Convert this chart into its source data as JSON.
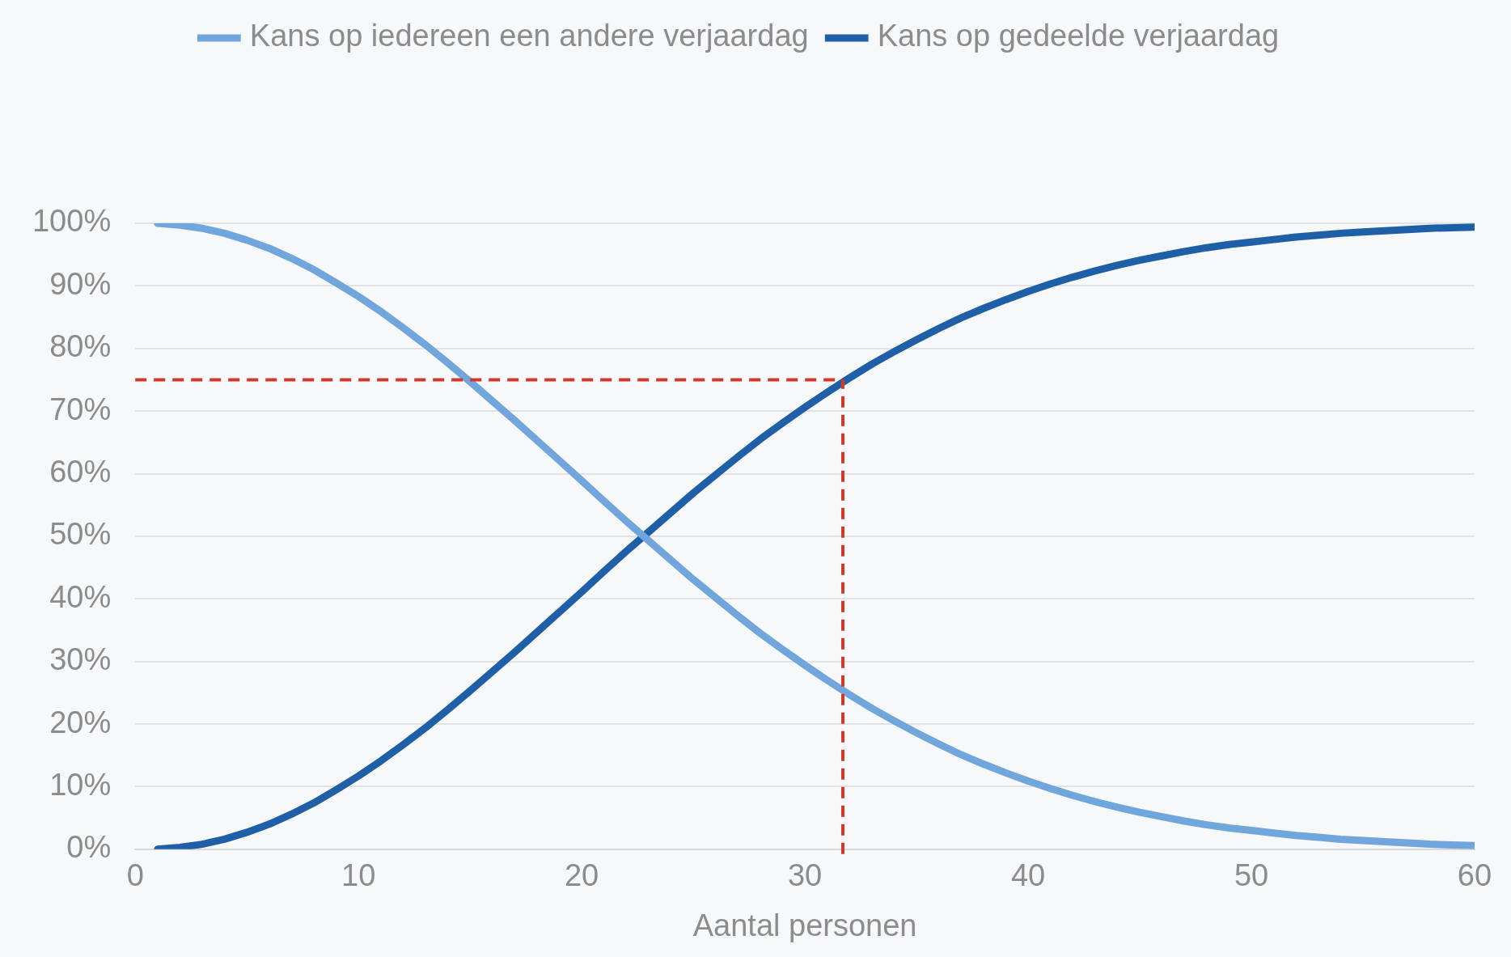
{
  "chart_data": {
    "type": "line",
    "xlabel": "Aantal personen",
    "x": [
      1,
      2,
      3,
      4,
      5,
      6,
      7,
      8,
      9,
      10,
      11,
      12,
      13,
      14,
      15,
      16,
      17,
      18,
      19,
      20,
      21,
      22,
      23,
      24,
      25,
      26,
      27,
      28,
      29,
      30,
      31,
      32,
      33,
      34,
      35,
      36,
      37,
      38,
      39,
      40,
      41,
      42,
      43,
      44,
      45,
      46,
      47,
      48,
      49,
      50,
      51,
      52,
      53,
      54,
      55,
      56,
      57,
      58,
      59,
      60
    ],
    "series": [
      {
        "name": "Kans op iedereen een andere verjaardag",
        "color": "#70a6dc",
        "values": [
          100,
          99.7,
          99.2,
          98.4,
          97.3,
          96,
          94.4,
          92.6,
          90.5,
          88.3,
          85.9,
          83.3,
          80.6,
          77.7,
          74.7,
          71.6,
          68.5,
          65.3,
          62.1,
          58.9,
          55.6,
          52.4,
          49.3,
          46.2,
          43.1,
          40.2,
          37.3,
          34.5,
          31.9,
          29.4,
          27,
          24.7,
          22.5,
          20.5,
          18.6,
          16.8,
          15.1,
          13.6,
          12.2,
          10.9,
          9.7,
          8.6,
          7.6,
          6.7,
          5.9,
          5.2,
          4.5,
          3.9,
          3.4,
          3,
          2.6,
          2.2,
          1.9,
          1.6,
          1.4,
          1.2,
          1,
          0.8,
          0.7,
          0.6
        ]
      },
      {
        "name": "Kans op gedeelde verjaardag",
        "color": "#1f5fa8",
        "values": [
          0,
          0.3,
          0.8,
          1.6,
          2.7,
          4,
          5.6,
          7.4,
          9.5,
          11.7,
          14.1,
          16.7,
          19.4,
          22.3,
          25.3,
          28.4,
          31.5,
          34.7,
          37.9,
          41.1,
          44.4,
          47.6,
          50.7,
          53.8,
          56.9,
          59.8,
          62.7,
          65.5,
          68.1,
          70.6,
          73,
          75.3,
          77.5,
          79.5,
          81.4,
          83.2,
          84.9,
          86.4,
          87.8,
          89.1,
          90.3,
          91.4,
          92.4,
          93.3,
          94.1,
          94.8,
          95.5,
          96.1,
          96.6,
          97,
          97.4,
          97.8,
          98.1,
          98.4,
          98.6,
          98.8,
          99,
          99.2,
          99.3,
          99.4
        ]
      }
    ],
    "xlim": [
      0,
      60
    ],
    "xticks": [
      0,
      10,
      20,
      30,
      40,
      50,
      60
    ],
    "ylim": [
      0,
      100
    ],
    "yticks": [
      {
        "value": 0,
        "label": "0%"
      },
      {
        "value": 10,
        "label": "10%"
      },
      {
        "value": 20,
        "label": "20%"
      },
      {
        "value": 30,
        "label": "30%"
      },
      {
        "value": 40,
        "label": "40%"
      },
      {
        "value": 50,
        "label": "50%"
      },
      {
        "value": 60,
        "label": "60%"
      },
      {
        "value": 70,
        "label": "70%"
      },
      {
        "value": 80,
        "label": "80%"
      },
      {
        "value": 90,
        "label": "90%"
      },
      {
        "value": 100,
        "label": "100%"
      }
    ],
    "ref_lines": [
      {
        "axis": "y",
        "value": 75,
        "color": "#d0392b",
        "line_style": "dashed"
      },
      {
        "axis": "x",
        "value": 31.7,
        "color": "#d0392b",
        "line_style": "dashed"
      }
    ],
    "grid": "y",
    "legend": "top",
    "marker": "none",
    "line_style": "solid"
  }
}
